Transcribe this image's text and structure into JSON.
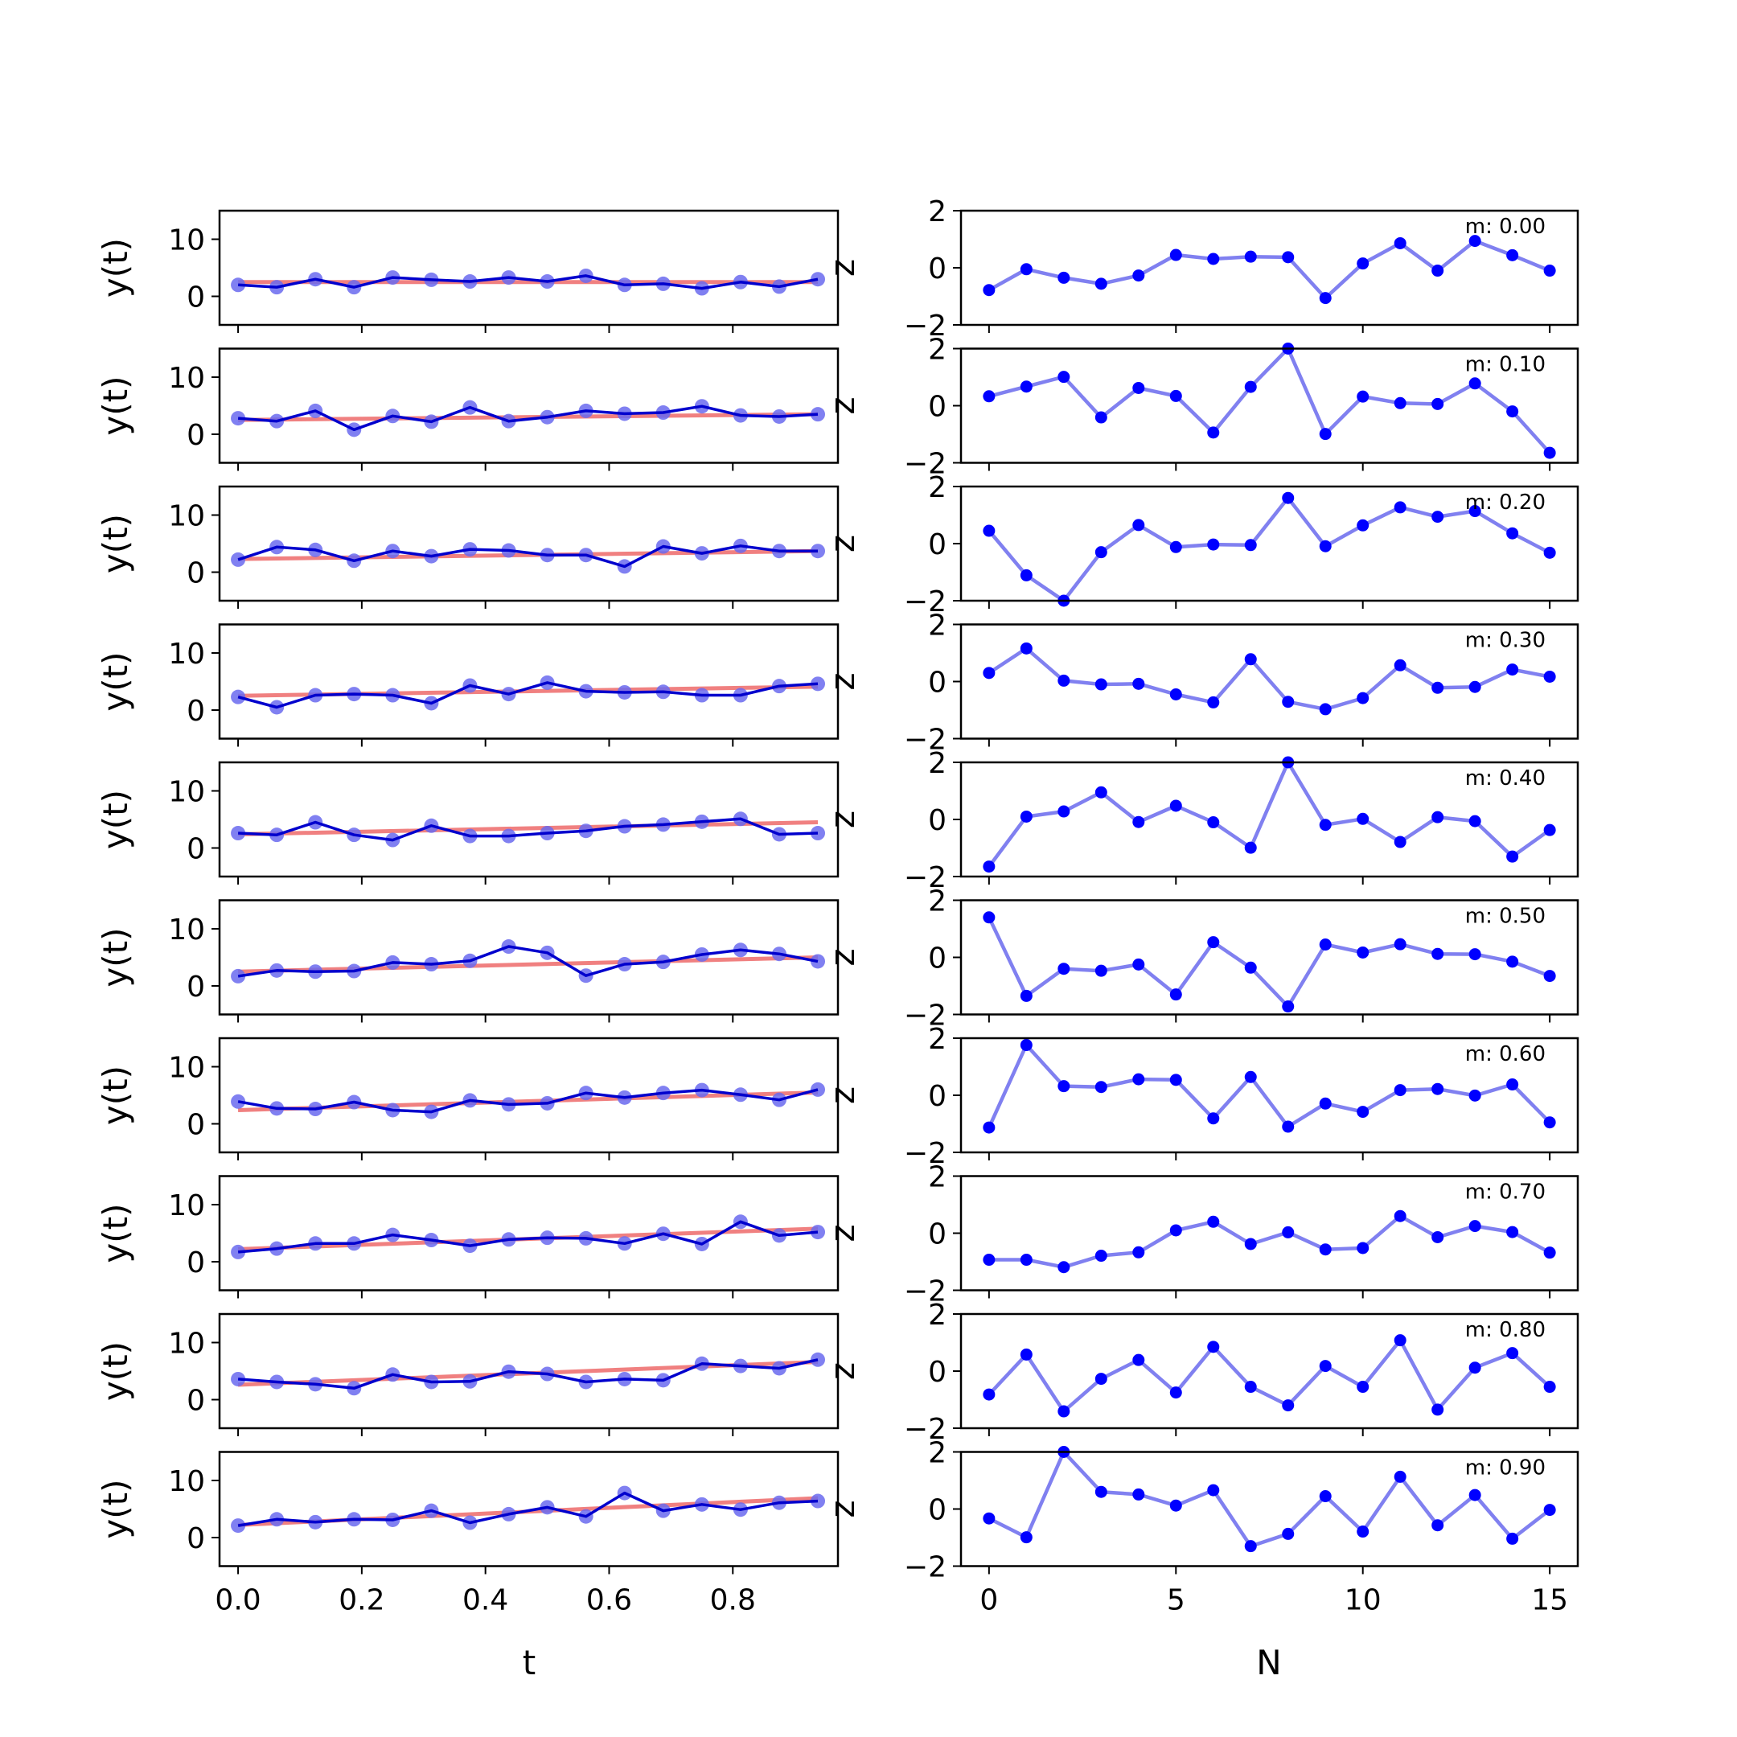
{
  "colors": {
    "fit_line": "#f08080",
    "data_line": "#0000cd",
    "data_marker": "#6a6aee",
    "residual_line": "#8080f0",
    "residual_marker": "#0000ff",
    "axes": "#000000"
  },
  "chart_data": {
    "type": "line",
    "layout": "10 rows x 2 columns of subplots",
    "left_column": {
      "xlabel": "t",
      "ylabel": "y(t)",
      "xlim": [
        -0.03,
        0.97
      ],
      "ylim": [
        -5,
        15
      ],
      "xticks": [
        0.0,
        0.2,
        0.4,
        0.6,
        0.8
      ],
      "xtick_labels": [
        "0.0",
        "0.2",
        "0.4",
        "0.6",
        "0.8"
      ],
      "yticks": [
        0,
        10
      ],
      "ytick_labels": [
        "0",
        "10"
      ],
      "x": [
        0.0,
        0.0625,
        0.125,
        0.1875,
        0.25,
        0.3125,
        0.375,
        0.4375,
        0.5,
        0.5625,
        0.625,
        0.6875,
        0.75,
        0.8125,
        0.875,
        0.9375
      ],
      "panels": [
        {
          "slope": 0.0,
          "fit": [
            2.5,
            2.5
          ],
          "y": [
            2.0,
            1.6,
            3.0,
            1.6,
            3.3,
            2.9,
            2.6,
            3.3,
            2.6,
            3.6,
            2.0,
            2.2,
            1.4,
            2.5,
            1.7,
            3.0
          ]
        },
        {
          "slope": 0.1,
          "fit": [
            2.5,
            3.5
          ],
          "y": [
            2.8,
            2.3,
            4.1,
            0.8,
            3.2,
            2.2,
            4.7,
            2.3,
            3.0,
            4.1,
            3.6,
            3.8,
            4.9,
            3.3,
            3.1,
            3.5
          ]
        },
        {
          "slope": 0.2,
          "fit": [
            2.3,
            3.7
          ],
          "y": [
            2.2,
            4.4,
            3.9,
            2.0,
            3.7,
            2.8,
            4.0,
            3.8,
            3.0,
            3.0,
            1.0,
            4.5,
            3.3,
            4.6,
            3.7,
            3.7
          ]
        },
        {
          "slope": 0.3,
          "fit": [
            2.5,
            4.1
          ],
          "y": [
            2.3,
            0.5,
            2.6,
            2.8,
            2.6,
            1.2,
            4.3,
            2.8,
            4.8,
            3.3,
            3.1,
            3.2,
            2.6,
            2.6,
            4.2,
            4.6
          ]
        },
        {
          "slope": 0.4,
          "fit": [
            2.4,
            4.5
          ],
          "y": [
            2.6,
            2.3,
            4.5,
            2.3,
            1.4,
            3.9,
            2.1,
            2.1,
            2.6,
            3.0,
            3.8,
            4.1,
            4.6,
            5.1,
            2.4,
            2.6
          ]
        },
        {
          "slope": 0.5,
          "fit": [
            2.5,
            5.0
          ],
          "y": [
            1.7,
            2.7,
            2.5,
            2.6,
            4.1,
            3.8,
            4.4,
            6.9,
            5.8,
            1.8,
            3.8,
            4.2,
            5.5,
            6.3,
            5.6,
            4.3
          ]
        },
        {
          "slope": 0.6,
          "fit": [
            2.4,
            5.5
          ],
          "y": [
            3.9,
            2.7,
            2.6,
            3.8,
            2.4,
            2.1,
            4.1,
            3.4,
            3.6,
            5.4,
            4.6,
            5.4,
            5.9,
            5.1,
            4.2,
            6.0
          ]
        },
        {
          "slope": 0.7,
          "fit": [
            2.2,
            5.8
          ],
          "y": [
            1.7,
            2.3,
            3.2,
            3.2,
            4.7,
            3.8,
            2.8,
            3.9,
            4.2,
            4.1,
            3.2,
            4.9,
            3.1,
            7.0,
            4.6,
            5.2
          ]
        },
        {
          "slope": 0.8,
          "fit": [
            2.6,
            6.6
          ],
          "y": [
            3.6,
            3.1,
            2.7,
            2.0,
            4.4,
            3.1,
            3.2,
            4.9,
            4.5,
            3.1,
            3.6,
            3.4,
            6.3,
            5.9,
            5.5,
            7.0
          ]
        },
        {
          "slope": 0.9,
          "fit": [
            2.2,
            6.9
          ],
          "y": [
            2.1,
            3.2,
            2.7,
            3.2,
            3.1,
            4.7,
            2.6,
            4.1,
            5.3,
            3.7,
            7.8,
            4.7,
            5.8,
            4.9,
            6.1,
            6.4
          ]
        }
      ]
    },
    "right_column": {
      "xlabel": "N",
      "ylabel": "z",
      "xlim": [
        -0.75,
        15.75
      ],
      "ylim": [
        -2,
        2
      ],
      "xticks": [
        0,
        5,
        10,
        15
      ],
      "xtick_labels": [
        "0",
        "5",
        "10",
        "15"
      ],
      "yticks": [
        -2,
        0,
        2
      ],
      "ytick_labels": [
        "−2",
        "0",
        "2"
      ],
      "x": [
        0,
        1,
        2,
        3,
        4,
        5,
        6,
        7,
        8,
        9,
        10,
        11,
        12,
        13,
        14,
        15
      ],
      "panels": [
        {
          "label": "m: 0.00",
          "z": [
            -0.78,
            -0.05,
            -0.35,
            -0.56,
            -0.27,
            0.45,
            0.31,
            0.39,
            0.37,
            -1.06,
            0.15,
            0.86,
            -0.1,
            0.94,
            0.44,
            -0.1
          ]
        },
        {
          "label": "m: 0.10",
          "z": [
            0.33,
            0.67,
            1.01,
            -0.41,
            0.62,
            0.34,
            -0.94,
            0.66,
            2.0,
            -0.99,
            0.32,
            0.09,
            0.06,
            0.78,
            -0.2,
            -1.65
          ]
        },
        {
          "label": "m: 0.20",
          "z": [
            0.45,
            -1.11,
            -2.0,
            -0.3,
            0.65,
            -0.12,
            -0.03,
            -0.05,
            1.6,
            -0.09,
            0.64,
            1.27,
            0.94,
            1.14,
            0.36,
            -0.32
          ]
        },
        {
          "label": "m: 0.30",
          "z": [
            0.3,
            1.16,
            0.03,
            -0.1,
            -0.08,
            -0.45,
            -0.73,
            0.78,
            -0.71,
            -0.97,
            -0.58,
            0.57,
            -0.22,
            -0.19,
            0.42,
            0.17
          ]
        },
        {
          "label": "m: 0.40",
          "z": [
            -1.65,
            0.1,
            0.28,
            0.95,
            -0.09,
            0.48,
            -0.1,
            -0.99,
            2.0,
            -0.19,
            0.02,
            -0.79,
            0.08,
            -0.06,
            -1.3,
            -0.37
          ]
        },
        {
          "label": "m: 0.50",
          "z": [
            1.4,
            -1.35,
            -0.4,
            -0.47,
            -0.25,
            -1.3,
            0.53,
            -0.36,
            -1.72,
            0.45,
            0.17,
            0.46,
            0.12,
            0.11,
            -0.15,
            -0.65
          ]
        },
        {
          "label": "m: 0.60",
          "z": [
            -1.13,
            1.76,
            0.32,
            0.29,
            0.56,
            0.54,
            -0.81,
            0.64,
            -1.1,
            -0.29,
            -0.58,
            0.18,
            0.22,
            -0.01,
            0.38,
            -0.95
          ]
        },
        {
          "label": "m: 0.70",
          "z": [
            -0.93,
            -0.93,
            -1.19,
            -0.79,
            -0.67,
            0.1,
            0.4,
            -0.38,
            0.03,
            -0.57,
            -0.52,
            0.6,
            -0.14,
            0.25,
            0.04,
            -0.68
          ]
        },
        {
          "label": "m: 0.80",
          "z": [
            -0.82,
            0.58,
            -1.41,
            -0.27,
            0.39,
            -0.75,
            0.85,
            -0.55,
            -1.2,
            0.18,
            -0.55,
            1.08,
            -1.35,
            0.12,
            0.63,
            -0.55
          ]
        },
        {
          "label": "m: 0.90",
          "z": [
            -0.33,
            -0.99,
            2.0,
            0.6,
            0.51,
            0.12,
            0.66,
            -1.3,
            -0.87,
            0.45,
            -0.79,
            1.13,
            -0.57,
            0.49,
            -1.04,
            -0.03
          ]
        }
      ]
    }
  }
}
